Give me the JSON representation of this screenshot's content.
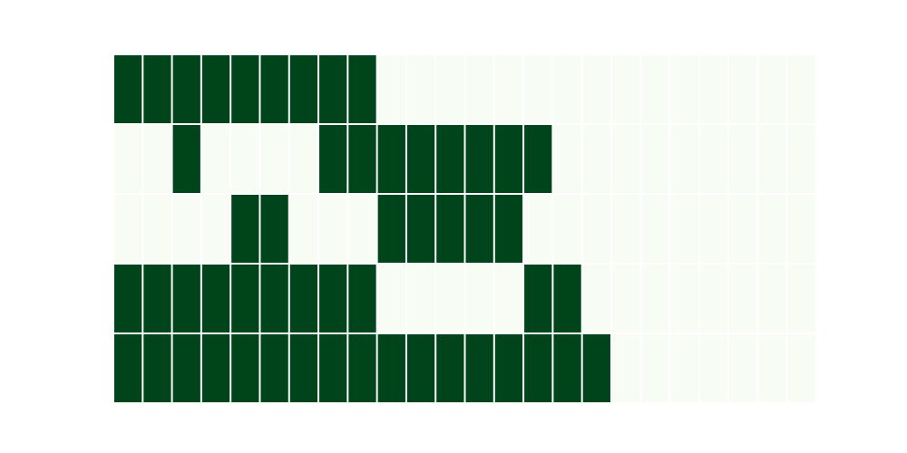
{
  "chart_data": {
    "type": "heatmap",
    "title": "",
    "xlabel": "",
    "ylabel": "",
    "grid": false,
    "colors": {
      "on": "#00441b",
      "off": "#f7fcf5",
      "gap": "#ffffff"
    },
    "values": [
      [
        1,
        1,
        1,
        1,
        1,
        1,
        1,
        1,
        1,
        0,
        0,
        0,
        0,
        0,
        0,
        0,
        0,
        0,
        0,
        0,
        0,
        0,
        0,
        0
      ],
      [
        0,
        0,
        1,
        0,
        0,
        0,
        0,
        1,
        1,
        1,
        1,
        1,
        1,
        1,
        1,
        0,
        0,
        0,
        0,
        0,
        0,
        0,
        0,
        0
      ],
      [
        0,
        0,
        0,
        0,
        1,
        1,
        0,
        0,
        0,
        1,
        1,
        1,
        1,
        1,
        0,
        0,
        0,
        0,
        0,
        0,
        0,
        0,
        0,
        0
      ],
      [
        1,
        1,
        1,
        1,
        1,
        1,
        1,
        1,
        1,
        0,
        0,
        0,
        0,
        0,
        1,
        1,
        0,
        0,
        0,
        0,
        0,
        0,
        0,
        0
      ],
      [
        1,
        1,
        1,
        1,
        1,
        1,
        1,
        1,
        1,
        1,
        1,
        1,
        1,
        1,
        1,
        1,
        1,
        0,
        0,
        0,
        0,
        0,
        0,
        0
      ]
    ]
  }
}
